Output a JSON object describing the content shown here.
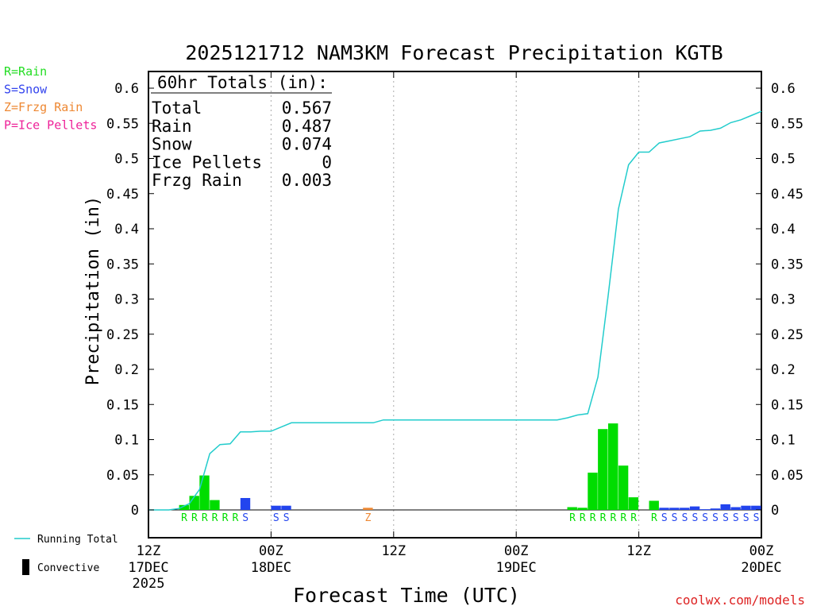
{
  "chart_data": {
    "type": "bar+line",
    "title": "2025121712 NAM3KM Forecast Precipitation KGTB",
    "xlabel": "Forecast Time (UTC)",
    "ylabel": "Precipitation (in)",
    "ylim": [
      -0.039,
      0.625
    ],
    "y_ticks": [
      "0.6",
      "0.55",
      "0.5",
      "0.45",
      "0.4",
      "0.35",
      "0.3",
      "0.25",
      "0.2",
      "0.15",
      "0.1",
      "0.05",
      "0"
    ],
    "x_range_hours": [
      0,
      60
    ],
    "x_ticks": [
      {
        "hour": 0,
        "l1": "12Z",
        "l2": "17DEC",
        "l3": "2025"
      },
      {
        "hour": 12,
        "l1": "00Z",
        "l2": "18DEC",
        "l3": ""
      },
      {
        "hour": 24,
        "l1": "12Z",
        "l2": "",
        "l3": ""
      },
      {
        "hour": 36,
        "l1": "00Z",
        "l2": "19DEC",
        "l3": ""
      },
      {
        "hour": 48,
        "l1": "12Z",
        "l2": "",
        "l3": ""
      },
      {
        "hour": 60,
        "l1": "00Z",
        "l2": "20DEC",
        "l3": ""
      }
    ],
    "ptype_legend": [
      {
        "text": "R=Rain",
        "color": "#22dd22"
      },
      {
        "text": "S=Snow",
        "color": "#3344ee"
      },
      {
        "text": "Z=Frzg Rain",
        "color": "#ee8833"
      },
      {
        "text": "P=Ice Pellets",
        "color": "#ee2299"
      }
    ],
    "series_legend": [
      {
        "name": "Running Total",
        "symbol": "line",
        "color": "#22cccc"
      },
      {
        "name": "Convective",
        "symbol": "bar",
        "color": "#000000"
      }
    ],
    "totals": {
      "header": "60hr Totals (in):",
      "rows": [
        {
          "label": "Total",
          "value": "0.567"
        },
        {
          "label": "Rain",
          "value": "0.487"
        },
        {
          "label": "Snow",
          "value": "0.074"
        },
        {
          "label": "Ice Pellets",
          "value": "0"
        },
        {
          "label": "Frzg Rain",
          "value": "0.003"
        }
      ]
    },
    "colors": {
      "rain": "#00dd00",
      "snow": "#2244ee",
      "frzg": "#ee8833",
      "line": "#22cccc"
    },
    "bars": [
      {
        "hour": 4,
        "value": 0.007,
        "ptype": "rain"
      },
      {
        "hour": 5,
        "value": 0.02,
        "ptype": "rain"
      },
      {
        "hour": 6,
        "value": 0.049,
        "ptype": "rain"
      },
      {
        "hour": 7,
        "value": 0.014,
        "ptype": "rain"
      },
      {
        "hour": 10,
        "value": 0.017,
        "ptype": "snow"
      },
      {
        "hour": 13,
        "value": 0.006,
        "ptype": "snow"
      },
      {
        "hour": 14,
        "value": 0.006,
        "ptype": "snow"
      },
      {
        "hour": 22,
        "value": 0.003,
        "ptype": "frzg"
      },
      {
        "hour": 42,
        "value": 0.004,
        "ptype": "rain"
      },
      {
        "hour": 43,
        "value": 0.003,
        "ptype": "rain"
      },
      {
        "hour": 44,
        "value": 0.053,
        "ptype": "rain"
      },
      {
        "hour": 45,
        "value": 0.115,
        "ptype": "rain"
      },
      {
        "hour": 46,
        "value": 0.123,
        "ptype": "rain"
      },
      {
        "hour": 47,
        "value": 0.063,
        "ptype": "rain"
      },
      {
        "hour": 48,
        "value": 0.018,
        "ptype": "rain"
      },
      {
        "hour": 50,
        "value": 0.013,
        "ptype": "rain"
      },
      {
        "hour": 51,
        "value": 0.003,
        "ptype": "snow"
      },
      {
        "hour": 52,
        "value": 0.003,
        "ptype": "snow"
      },
      {
        "hour": 53,
        "value": 0.003,
        "ptype": "snow"
      },
      {
        "hour": 54,
        "value": 0.005,
        "ptype": "snow"
      },
      {
        "hour": 55,
        "value": 0.001,
        "ptype": "snow"
      },
      {
        "hour": 56,
        "value": 0.002,
        "ptype": "snow"
      },
      {
        "hour": 57,
        "value": 0.008,
        "ptype": "snow"
      },
      {
        "hour": 58,
        "value": 0.004,
        "ptype": "snow"
      },
      {
        "hour": 59,
        "value": 0.006,
        "ptype": "snow"
      },
      {
        "hour": 60,
        "value": 0.006,
        "ptype": "snow"
      }
    ],
    "running_total": [
      [
        0,
        0
      ],
      [
        1,
        0
      ],
      [
        2,
        0
      ],
      [
        3,
        0.002
      ],
      [
        4,
        0.009
      ],
      [
        5,
        0.029
      ],
      [
        6,
        0.08
      ],
      [
        7,
        0.093
      ],
      [
        8,
        0.094
      ],
      [
        9,
        0.111
      ],
      [
        10,
        0.111
      ],
      [
        11,
        0.112
      ],
      [
        12,
        0.112
      ],
      [
        13,
        0.118
      ],
      [
        14,
        0.124
      ],
      [
        15,
        0.124
      ],
      [
        16,
        0.124
      ],
      [
        17,
        0.124
      ],
      [
        18,
        0.124
      ],
      [
        19,
        0.124
      ],
      [
        20,
        0.124
      ],
      [
        21,
        0.124
      ],
      [
        22,
        0.124
      ],
      [
        23,
        0.128
      ],
      [
        24,
        0.128
      ],
      [
        34,
        0.128
      ],
      [
        40,
        0.128
      ],
      [
        41,
        0.131
      ],
      [
        42,
        0.135
      ],
      [
        43,
        0.137
      ],
      [
        44,
        0.189
      ],
      [
        45,
        0.305
      ],
      [
        46,
        0.428
      ],
      [
        47,
        0.491
      ],
      [
        48,
        0.509
      ],
      [
        49,
        0.509
      ],
      [
        50,
        0.522
      ],
      [
        51,
        0.525
      ],
      [
        52,
        0.528
      ],
      [
        53,
        0.531
      ],
      [
        54,
        0.539
      ],
      [
        55,
        0.54
      ],
      [
        56,
        0.543
      ],
      [
        57,
        0.551
      ],
      [
        58,
        0.555
      ],
      [
        59,
        0.561
      ],
      [
        60,
        0.567
      ]
    ],
    "ptype_labels": [
      {
        "hour": 4,
        "text": "R",
        "ptype": "rain"
      },
      {
        "hour": 5,
        "text": "R",
        "ptype": "rain"
      },
      {
        "hour": 6,
        "text": "R",
        "ptype": "rain"
      },
      {
        "hour": 7,
        "text": "R",
        "ptype": "rain"
      },
      {
        "hour": 8,
        "text": "R",
        "ptype": "rain"
      },
      {
        "hour": 9,
        "text": "R",
        "ptype": "rain"
      },
      {
        "hour": 10,
        "text": "S",
        "ptype": "snow"
      },
      {
        "hour": 13,
        "text": "S",
        "ptype": "snow"
      },
      {
        "hour": 14,
        "text": "S",
        "ptype": "snow"
      },
      {
        "hour": 22,
        "text": "Z",
        "ptype": "frzg"
      },
      {
        "hour": 42,
        "text": "R",
        "ptype": "rain"
      },
      {
        "hour": 43,
        "text": "R",
        "ptype": "rain"
      },
      {
        "hour": 44,
        "text": "R",
        "ptype": "rain"
      },
      {
        "hour": 45,
        "text": "R",
        "ptype": "rain"
      },
      {
        "hour": 46,
        "text": "R",
        "ptype": "rain"
      },
      {
        "hour": 47,
        "text": "R",
        "ptype": "rain"
      },
      {
        "hour": 48,
        "text": "R",
        "ptype": "rain"
      },
      {
        "hour": 50,
        "text": "R",
        "ptype": "rain"
      },
      {
        "hour": 51,
        "text": "S",
        "ptype": "snow"
      },
      {
        "hour": 52,
        "text": "S",
        "ptype": "snow"
      },
      {
        "hour": 53,
        "text": "S",
        "ptype": "snow"
      },
      {
        "hour": 54,
        "text": "S",
        "ptype": "snow"
      },
      {
        "hour": 55,
        "text": "S",
        "ptype": "snow"
      },
      {
        "hour": 56,
        "text": "S",
        "ptype": "snow"
      },
      {
        "hour": 57,
        "text": "S",
        "ptype": "snow"
      },
      {
        "hour": 58,
        "text": "S",
        "ptype": "snow"
      },
      {
        "hour": 59,
        "text": "S",
        "ptype": "snow"
      },
      {
        "hour": 60,
        "text": "S",
        "ptype": "snow"
      }
    ],
    "credit": "coolwx.com/models"
  }
}
